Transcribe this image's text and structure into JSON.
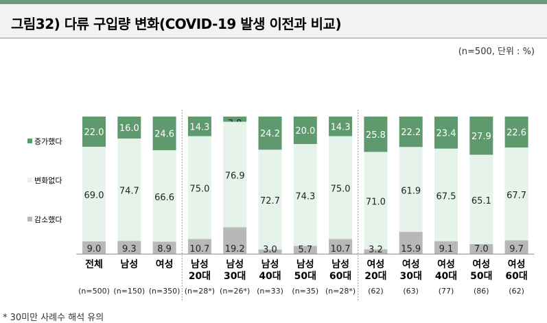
{
  "title": "그림32) 다류 구입량 변화(COVID-19 발생 이전과 비교)",
  "unit_note": "(n=500, 단위 : %)",
  "footnote": "* 30미만 사례수 해석 유의",
  "colors": {
    "increase": "#5f9a6e",
    "same": "#e5f3eb",
    "decrease": "#b8b8b8",
    "divider": "#9a9a9a"
  },
  "chart_data": {
    "type": "bar",
    "stacked": true,
    "normalized": true,
    "legend_position": "left",
    "categories": [
      "전체",
      "남성",
      "여성",
      "남성\n20대",
      "남성\n30대",
      "남성\n40대",
      "남성\n50대",
      "남성\n60대",
      "여성\n20대",
      "여성\n30대",
      "여성\n40대",
      "여성\n50대",
      "여성\n60대"
    ],
    "sample_sizes": [
      "(n=500)",
      "(n=150)",
      "(n=350)",
      "(n=28*)",
      "(n=26*)",
      "(n=33)",
      "(n=35)",
      "(n=28*)",
      "(62)",
      "(63)",
      "(77)",
      "(86)",
      "(62)"
    ],
    "series": [
      {
        "name": "증가했다",
        "values": [
          22.0,
          16.0,
          24.6,
          14.3,
          3.8,
          24.2,
          20.0,
          14.3,
          25.8,
          22.2,
          23.4,
          27.9,
          22.6
        ]
      },
      {
        "name": "변화없다",
        "values": [
          69.0,
          74.7,
          66.6,
          75.0,
          76.9,
          72.7,
          74.3,
          75.0,
          71.0,
          61.9,
          67.5,
          65.1,
          67.7
        ]
      },
      {
        "name": "감소했다",
        "values": [
          9.0,
          9.3,
          8.9,
          10.7,
          19.2,
          3.0,
          5.7,
          10.7,
          3.2,
          15.9,
          9.1,
          7.0,
          9.7
        ]
      }
    ],
    "value_labels": [
      [
        "22.0",
        "16.0",
        "24.6",
        "14.3",
        "3.8",
        "24.2",
        "20.0",
        "14.3",
        "25.8",
        "22.2",
        "23.4",
        "27.9",
        "22.6"
      ],
      [
        "69.0",
        "74.7",
        "66.6",
        "75.0",
        "76.9",
        "72.7",
        "74.3",
        "75.0",
        "71.0",
        "61.9",
        "67.5",
        "65.1",
        "67.7"
      ],
      [
        "9.0",
        "9.3",
        "8.9",
        "10.7",
        "19.2",
        "3.0",
        "5.7",
        "10.7",
        "3.2",
        "15.9",
        "9.1",
        "7.0",
        "9.7"
      ]
    ],
    "group_dividers_after": [
      2,
      7
    ]
  }
}
